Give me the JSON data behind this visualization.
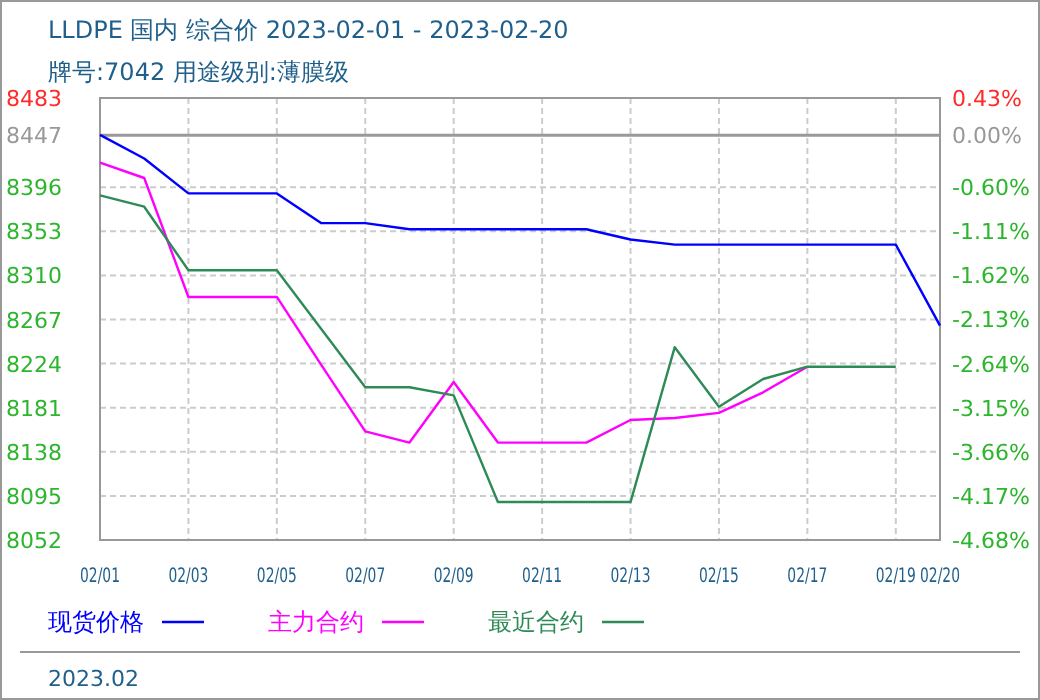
{
  "chart_data": {
    "type": "line",
    "title": "LLDPE 国内 综合价 2023-02-01 - 2023-02-20",
    "subtitle": "牌号:7042 用途级别:薄膜级",
    "x": [
      "2023-02-01",
      "2023-02-02",
      "2023-02-03",
      "2023-02-04",
      "2023-02-05",
      "2023-02-06",
      "2023-02-07",
      "2023-02-08",
      "2023-02-09",
      "2023-02-10",
      "2023-02-11",
      "2023-02-12",
      "2023-02-13",
      "2023-02-14",
      "2023-02-15",
      "2023-02-16",
      "2023-02-17",
      "2023-02-18",
      "2023-02-19",
      "2023-02-20"
    ],
    "series": [
      {
        "name": "现货价格",
        "color": "#0000ff",
        "values": [
          8447,
          8424,
          8390,
          8390,
          8390,
          8361,
          8361,
          8355,
          8355,
          8355,
          8355,
          8355,
          8345,
          8340,
          8340,
          8340,
          8340,
          8340,
          8340,
          8261
        ]
      },
      {
        "name": "主力合约",
        "color": "#ff00ff",
        "values": [
          8420,
          8405,
          8289,
          8289,
          8289,
          8223,
          8158,
          8147,
          8206,
          8147,
          8147,
          8147,
          8169,
          8171,
          8176,
          8196,
          8221,
          null,
          null,
          null
        ]
      },
      {
        "name": "最近合约",
        "color": "#2e8b57",
        "values": [
          8388,
          8377,
          8315,
          8315,
          8315,
          8258,
          8201,
          8201,
          8193,
          8089,
          8089,
          8089,
          8089,
          8240,
          8182,
          8209,
          8221,
          8221,
          8221,
          null
        ]
      }
    ],
    "xlim": [
      "2023-02-01",
      "2023-02-20"
    ],
    "xticks": [
      {
        "value": "2023-02-01",
        "label": "02/01"
      },
      {
        "value": "2023-02-03",
        "label": "02/03"
      },
      {
        "value": "2023-02-05",
        "label": "02/05"
      },
      {
        "value": "2023-02-07",
        "label": "02/07"
      },
      {
        "value": "2023-02-09",
        "label": "02/09"
      },
      {
        "value": "2023-02-11",
        "label": "02/11"
      },
      {
        "value": "2023-02-13",
        "label": "02/13"
      },
      {
        "value": "2023-02-15",
        "label": "02/15"
      },
      {
        "value": "2023-02-17",
        "label": "02/17"
      },
      {
        "value": "2023-02-19",
        "label": "02/19"
      },
      {
        "value": "2023-02-20",
        "label": "02/20"
      }
    ],
    "ylim": [
      8052,
      8483
    ],
    "yticks": [
      8052,
      8095,
      8138,
      8181,
      8224,
      8267,
      8310,
      8353,
      8396,
      8447,
      8483
    ],
    "y2lim": [
      -4.68,
      0.43
    ],
    "y2ticks": [
      {
        "value": -4.68,
        "label": "-4.68%"
      },
      {
        "value": -4.17,
        "label": "-4.17%"
      },
      {
        "value": -3.66,
        "label": "-3.66%"
      },
      {
        "value": -3.15,
        "label": "-3.15%"
      },
      {
        "value": -2.64,
        "label": "-2.64%"
      },
      {
        "value": -2.13,
        "label": "-2.13%"
      },
      {
        "value": -1.62,
        "label": "-1.62%"
      },
      {
        "value": -1.11,
        "label": "-1.11%"
      },
      {
        "value": -0.6,
        "label": "-0.60%"
      },
      {
        "value": 0,
        "label": "0.00%"
      },
      {
        "value": 0.43,
        "label": "0.43%"
      }
    ],
    "ref_lines": [
      {
        "axis": "y2",
        "value": 0,
        "color": "#999999"
      }
    ],
    "grid": true,
    "legend": "bottom",
    "line_style": "solid",
    "marker": "none",
    "annotations": [
      "2023.02"
    ]
  }
}
